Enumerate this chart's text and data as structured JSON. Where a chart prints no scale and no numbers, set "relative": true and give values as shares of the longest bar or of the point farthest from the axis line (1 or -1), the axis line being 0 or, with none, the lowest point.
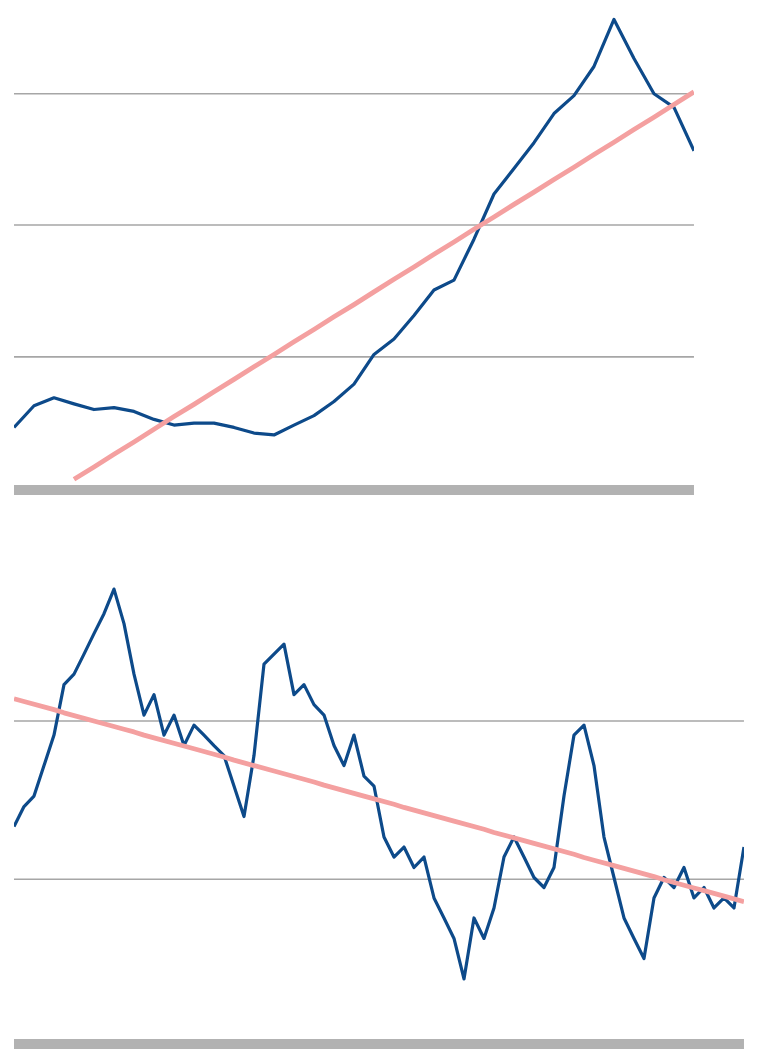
{
  "chart_data": [
    {
      "type": "line",
      "relative": true,
      "grid": "y",
      "marker": "none",
      "categories": [
        null,
        null,
        null,
        null,
        null,
        null,
        null,
        null,
        null,
        null,
        null,
        null,
        null,
        null,
        null,
        null,
        null,
        null,
        null,
        null,
        null,
        null,
        null,
        null,
        null,
        null,
        null,
        null,
        null,
        null,
        null,
        null,
        null,
        null,
        null
      ],
      "series": [
        {
          "color": "#0d4a8a",
          "values": [
            0.133,
            0.179,
            0.196,
            0.183,
            0.171,
            0.175,
            0.167,
            0.15,
            0.138,
            0.142,
            0.142,
            0.133,
            0.121,
            0.117,
            0.138,
            0.158,
            0.188,
            0.225,
            0.288,
            0.321,
            0.371,
            0.425,
            0.446,
            0.533,
            0.629,
            0.683,
            0.738,
            0.8,
            0.838,
            0.9,
            1,
            0.917,
            0.842,
            0.813,
            0.721
          ]
        },
        {
          "type": "line",
          "color": "#f4a0a0",
          "values": [
            null,
            null,
            null,
            0.023,
            0.049,
            0.076,
            0.102,
            0.129,
            0.156,
            0.182,
            0.209,
            0.235,
            0.262,
            0.288,
            0.315,
            0.341,
            0.368,
            0.394,
            0.421,
            0.448,
            0.474,
            0.501,
            0.527,
            0.554,
            0.58,
            0.607,
            0.633,
            0.66,
            0.686,
            0.713,
            0.739,
            0.766,
            0.792,
            0.819,
            0.846
          ]
        }
      ]
    },
    {
      "type": "line",
      "relative": true,
      "marker": "none",
      "ref_lines": [
        {
          "axis": "y",
          "value": 0.362,
          "color": "#a6a6a6"
        },
        {
          "axis": "y",
          "value": 0.71,
          "color": "#a6a6a6"
        }
      ],
      "categories": [
        null,
        null,
        null,
        null,
        null,
        null,
        null,
        null,
        null,
        null,
        null,
        null,
        null,
        null,
        null,
        null,
        null,
        null,
        null,
        null,
        null,
        null,
        null,
        null,
        null,
        null,
        null,
        null,
        null,
        null,
        null,
        null,
        null,
        null,
        null,
        null,
        null,
        null,
        null,
        null,
        null,
        null,
        null,
        null,
        null,
        null,
        null,
        null,
        null,
        null,
        null,
        null,
        null,
        null,
        null,
        null,
        null,
        null,
        null,
        null,
        null,
        null,
        null,
        null,
        null,
        null,
        null,
        null,
        null,
        null,
        null,
        null,
        null,
        null
      ],
      "series": [
        {
          "color": "#0d4a8a",
          "values": [
            0.478,
            0.522,
            0.545,
            0.612,
            0.679,
            0.79,
            0.813,
            0.857,
            0.902,
            0.946,
            1,
            0.924,
            0.813,
            0.723,
            0.768,
            0.679,
            0.723,
            0.656,
            0.701,
            0.679,
            0.656,
            0.634,
            0.567,
            0.5,
            0.634,
            0.835,
            0.857,
            0.879,
            0.768,
            0.79,
            0.746,
            0.723,
            0.656,
            0.612,
            0.679,
            0.589,
            0.567,
            0.455,
            0.411,
            0.433,
            0.388,
            0.411,
            0.321,
            0.277,
            0.232,
            0.143,
            0.277,
            0.232,
            0.299,
            0.411,
            0.455,
            0.411,
            0.366,
            0.344,
            0.388,
            0.545,
            0.679,
            0.701,
            0.612,
            0.455,
            0.366,
            0.277,
            0.232,
            0.188,
            0.321,
            0.366,
            0.344,
            0.388,
            0.321,
            0.344,
            0.299,
            0.321,
            0.299,
            0.433
          ]
        },
        {
          "type": "line",
          "color": "#f4a0a0",
          "values": [
            0.759,
            0.753,
            0.747,
            0.741,
            0.735,
            0.728,
            0.722,
            0.716,
            0.71,
            0.704,
            0.698,
            0.692,
            0.686,
            0.679,
            0.673,
            0.667,
            0.661,
            0.655,
            0.649,
            0.643,
            0.637,
            0.631,
            0.624,
            0.618,
            0.612,
            0.606,
            0.6,
            0.594,
            0.588,
            0.582,
            0.576,
            0.569,
            0.563,
            0.557,
            0.551,
            0.545,
            0.539,
            0.533,
            0.527,
            0.52,
            0.514,
            0.508,
            0.502,
            0.496,
            0.49,
            0.484,
            0.478,
            0.472,
            0.465,
            0.459,
            0.453,
            0.447,
            0.441,
            0.435,
            0.429,
            0.423,
            0.417,
            0.41,
            0.404,
            0.398,
            0.392,
            0.386,
            0.38,
            0.374,
            0.368,
            0.361,
            0.355,
            0.349,
            0.343,
            0.337,
            0.331,
            0.325,
            0.319,
            0.313
          ]
        }
      ]
    }
  ]
}
